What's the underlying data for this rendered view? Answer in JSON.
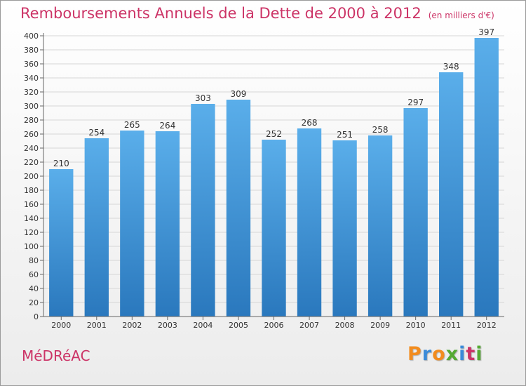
{
  "header": {
    "title": "Remboursements Annuels de la Dette de 2000 à 2012",
    "unit": "(en milliers d'€)"
  },
  "footer": {
    "commune": "MéDRéAC",
    "logo_text": "Proxiti",
    "logo_colors": [
      "#f28c1e",
      "#3b8bd9",
      "#f28c1e",
      "#55aa33",
      "#3b8bd9",
      "#cc3366",
      "#55aa33"
    ]
  },
  "chart_data": {
    "type": "bar",
    "title": "Remboursements Annuels de la Dette de 2000 à 2012",
    "xlabel": "",
    "ylabel": "",
    "categories": [
      "2000",
      "2001",
      "2002",
      "2003",
      "2004",
      "2005",
      "2006",
      "2007",
      "2008",
      "2009",
      "2010",
      "2011",
      "2012"
    ],
    "values": [
      210,
      254,
      265,
      264,
      303,
      309,
      252,
      268,
      251,
      258,
      297,
      348,
      397
    ],
    "ylim": [
      0,
      400
    ],
    "ytick_step": 20,
    "grid": true,
    "bar_color_top": "#5aaeea",
    "bar_color_bottom": "#2a78bd"
  }
}
